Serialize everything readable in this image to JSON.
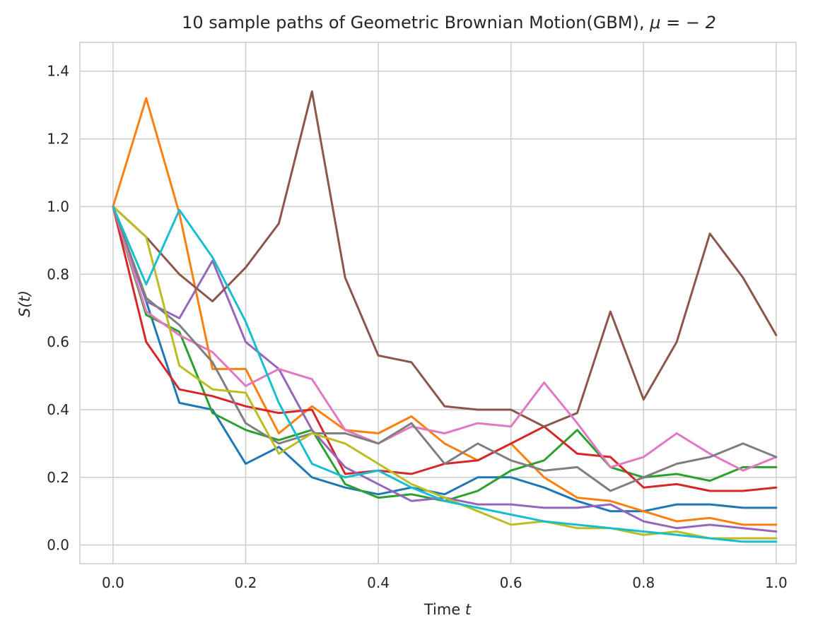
{
  "chart_data": {
    "type": "line",
    "title": "10 sample paths of Geometric Brownian Motion(GBM), ",
    "title_math": "μ = − 2",
    "xlabel": "Time ",
    "xlabel_math": "t",
    "ylabel": "S(t)",
    "xlim": [
      -0.05,
      1.03
    ],
    "ylim": [
      -0.055,
      1.485
    ],
    "xticks": [
      0.0,
      0.2,
      0.4,
      0.6,
      0.8,
      1.0
    ],
    "xtick_labels": [
      "0.0",
      "0.2",
      "0.4",
      "0.6",
      "0.8",
      "1.0"
    ],
    "yticks": [
      0.0,
      0.2,
      0.4,
      0.6,
      0.8,
      1.0,
      1.2,
      1.4
    ],
    "ytick_labels": [
      "0.0",
      "0.2",
      "0.4",
      "0.6",
      "0.8",
      "1.0",
      "1.2",
      "1.4"
    ],
    "grid": true,
    "background": "#ffffff",
    "grid_color": "#cccccc",
    "x": [
      0.0,
      0.05,
      0.1,
      0.15,
      0.2,
      0.25,
      0.3,
      0.35,
      0.4,
      0.45,
      0.5,
      0.55,
      0.6,
      0.65,
      0.7,
      0.75,
      0.8,
      0.85,
      0.9,
      0.95,
      1.0
    ],
    "series": [
      {
        "color": "#1f77b4",
        "values": [
          1.0,
          0.72,
          0.42,
          0.4,
          0.24,
          0.29,
          0.2,
          0.17,
          0.15,
          0.17,
          0.15,
          0.2,
          0.2,
          0.17,
          0.13,
          0.1,
          0.1,
          0.12,
          0.12,
          0.11,
          0.11
        ]
      },
      {
        "color": "#ff7f0e",
        "values": [
          1.0,
          1.32,
          0.98,
          0.52,
          0.52,
          0.33,
          0.41,
          0.34,
          0.33,
          0.38,
          0.3,
          0.25,
          0.3,
          0.2,
          0.14,
          0.13,
          0.1,
          0.07,
          0.08,
          0.06,
          0.06
        ]
      },
      {
        "color": "#2ca02c",
        "values": [
          1.0,
          0.68,
          0.63,
          0.39,
          0.34,
          0.31,
          0.34,
          0.18,
          0.14,
          0.15,
          0.13,
          0.16,
          0.22,
          0.25,
          0.34,
          0.23,
          0.2,
          0.21,
          0.19,
          0.23,
          0.23
        ]
      },
      {
        "color": "#d62728",
        "values": [
          1.0,
          0.6,
          0.46,
          0.44,
          0.41,
          0.39,
          0.4,
          0.21,
          0.22,
          0.21,
          0.24,
          0.25,
          0.3,
          0.35,
          0.27,
          0.26,
          0.17,
          0.18,
          0.16,
          0.16,
          0.17
        ]
      },
      {
        "color": "#9467bd",
        "values": [
          1.0,
          0.72,
          0.67,
          0.84,
          0.6,
          0.52,
          0.34,
          0.23,
          0.18,
          0.13,
          0.14,
          0.12,
          0.12,
          0.11,
          0.11,
          0.12,
          0.07,
          0.05,
          0.06,
          0.05,
          0.04
        ]
      },
      {
        "color": "#8c564b",
        "values": [
          1.0,
          0.91,
          0.8,
          0.72,
          0.82,
          0.95,
          1.34,
          0.79,
          0.56,
          0.54,
          0.41,
          0.4,
          0.4,
          0.35,
          0.39,
          0.69,
          0.43,
          0.6,
          0.92,
          0.79,
          0.62
        ]
      },
      {
        "color": "#e377c2",
        "values": [
          1.0,
          0.69,
          0.62,
          0.57,
          0.47,
          0.52,
          0.49,
          0.34,
          0.3,
          0.35,
          0.33,
          0.36,
          0.35,
          0.48,
          0.36,
          0.23,
          0.26,
          0.33,
          0.27,
          0.22,
          0.26
        ]
      },
      {
        "color": "#7f7f7f",
        "values": [
          1.0,
          0.73,
          0.65,
          0.54,
          0.36,
          0.3,
          0.33,
          0.33,
          0.3,
          0.36,
          0.24,
          0.3,
          0.25,
          0.22,
          0.23,
          0.16,
          0.2,
          0.24,
          0.26,
          0.3,
          0.26
        ]
      },
      {
        "color": "#bcbd22",
        "values": [
          1.0,
          0.91,
          0.53,
          0.46,
          0.45,
          0.27,
          0.33,
          0.3,
          0.24,
          0.18,
          0.14,
          0.1,
          0.06,
          0.07,
          0.05,
          0.05,
          0.03,
          0.04,
          0.02,
          0.02,
          0.02
        ]
      },
      {
        "color": "#17becf",
        "values": [
          1.0,
          0.77,
          0.99,
          0.85,
          0.66,
          0.42,
          0.24,
          0.2,
          0.22,
          0.17,
          0.13,
          0.11,
          0.09,
          0.07,
          0.06,
          0.05,
          0.04,
          0.03,
          0.02,
          0.01,
          0.01
        ]
      }
    ]
  }
}
